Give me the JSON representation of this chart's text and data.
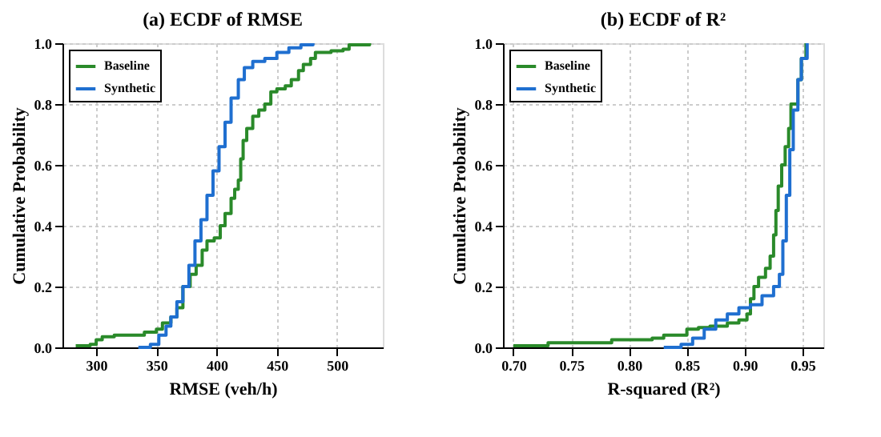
{
  "chart_data": [
    {
      "type": "step",
      "title": "(a) ECDF of RMSE",
      "xlabel": "RMSE (veh/h)",
      "ylabel": "Cumulative Probability",
      "xlim": [
        272,
        538
      ],
      "xticks": [
        300,
        350,
        400,
        450,
        500
      ],
      "ylim": [
        0,
        1
      ],
      "yticks": [
        {
          "value": 0,
          "label": "0.0"
        },
        {
          "value": 0.2,
          "label": "0.2"
        },
        {
          "value": 0.4,
          "label": "0.4"
        },
        {
          "value": 0.6,
          "label": "0.6"
        },
        {
          "value": 0.8,
          "label": "0.8"
        },
        {
          "value": 1,
          "label": "1.0"
        }
      ],
      "grid": true,
      "legend": "top left",
      "line_style": "solid",
      "marker": "none",
      "series": [
        {
          "name": "Baseline",
          "color": "#2a8a2a",
          "x": [
            283,
            295,
            300,
            305,
            315,
            340,
            350,
            355,
            362,
            367,
            372,
            378,
            383,
            388,
            392,
            398,
            403,
            407,
            412,
            415,
            418,
            420,
            422,
            425,
            430,
            435,
            440,
            445,
            450,
            457,
            462,
            468,
            472,
            478,
            482,
            495,
            505,
            510,
            527
          ],
          "values": [
            0.005,
            0.01,
            0.025,
            0.035,
            0.04,
            0.05,
            0.06,
            0.08,
            0.1,
            0.13,
            0.2,
            0.24,
            0.27,
            0.32,
            0.35,
            0.36,
            0.4,
            0.44,
            0.49,
            0.52,
            0.55,
            0.62,
            0.68,
            0.72,
            0.76,
            0.78,
            0.8,
            0.84,
            0.85,
            0.86,
            0.88,
            0.91,
            0.93,
            0.95,
            0.97,
            0.975,
            0.98,
            0.995,
            1.0
          ]
        },
        {
          "name": "Synthetic",
          "color": "#1f6fd0",
          "x": [
            335,
            345,
            352,
            358,
            362,
            367,
            372,
            377,
            382,
            387,
            392,
            397,
            402,
            407,
            412,
            418,
            423,
            430,
            440,
            450,
            460,
            470,
            480
          ],
          "values": [
            0,
            0.01,
            0.04,
            0.07,
            0.1,
            0.15,
            0.2,
            0.27,
            0.35,
            0.42,
            0.5,
            0.58,
            0.66,
            0.74,
            0.82,
            0.88,
            0.92,
            0.94,
            0.95,
            0.97,
            0.985,
            0.995,
            1.0
          ]
        }
      ]
    },
    {
      "type": "step",
      "title": "(b) ECDF of R²",
      "xlabel": "R-squared (R²)",
      "ylabel": "Cumulative Probability",
      "xlim": [
        0.691,
        0.968
      ],
      "xticks": [
        {
          "value": 0.7,
          "label": "0.70"
        },
        {
          "value": 0.75,
          "label": "0.75"
        },
        {
          "value": 0.8,
          "label": "0.80"
        },
        {
          "value": 0.85,
          "label": "0.85"
        },
        {
          "value": 0.9,
          "label": "0.90"
        },
        {
          "value": 0.95,
          "label": "0.95"
        }
      ],
      "ylim": [
        0,
        1
      ],
      "yticks": [
        {
          "value": 0,
          "label": "0.0"
        },
        {
          "value": 0.2,
          "label": "0.2"
        },
        {
          "value": 0.4,
          "label": "0.4"
        },
        {
          "value": 0.6,
          "label": "0.6"
        },
        {
          "value": 0.8,
          "label": "0.8"
        },
        {
          "value": 1,
          "label": "1.0"
        }
      ],
      "grid": true,
      "legend": "top left",
      "line_style": "solid",
      "marker": "none",
      "series": [
        {
          "name": "Baseline",
          "color": "#2a8a2a",
          "x": [
            0.7,
            0.73,
            0.785,
            0.82,
            0.83,
            0.85,
            0.86,
            0.87,
            0.885,
            0.895,
            0.902,
            0.905,
            0.908,
            0.912,
            0.918,
            0.922,
            0.925,
            0.927,
            0.929,
            0.932,
            0.935,
            0.938,
            0.94,
            0.946,
            0.949,
            0.953
          ],
          "values": [
            0.005,
            0.015,
            0.025,
            0.03,
            0.04,
            0.06,
            0.065,
            0.07,
            0.08,
            0.09,
            0.11,
            0.16,
            0.2,
            0.23,
            0.26,
            0.3,
            0.37,
            0.45,
            0.53,
            0.6,
            0.66,
            0.72,
            0.8,
            0.88,
            0.95,
            1.0
          ]
        },
        {
          "name": "Synthetic",
          "color": "#1f6fd0",
          "x": [
            0.83,
            0.845,
            0.855,
            0.865,
            0.875,
            0.885,
            0.895,
            0.905,
            0.915,
            0.925,
            0.93,
            0.933,
            0.936,
            0.939,
            0.942,
            0.946,
            0.949,
            0.954
          ],
          "values": [
            0,
            0.01,
            0.03,
            0.06,
            0.09,
            0.11,
            0.13,
            0.14,
            0.17,
            0.2,
            0.24,
            0.35,
            0.5,
            0.65,
            0.78,
            0.88,
            0.95,
            1.0
          ]
        }
      ]
    }
  ]
}
